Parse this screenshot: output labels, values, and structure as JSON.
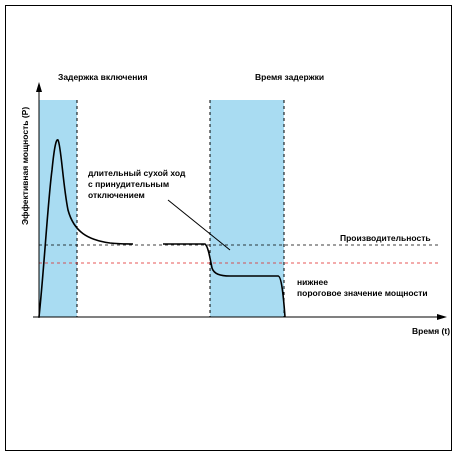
{
  "colors": {
    "band": "#a9dcf2",
    "curve": "#000000",
    "threshold_dashed": "#e02020",
    "productivity_dashed": "#000000"
  },
  "bands": [
    {
      "name": "startup_delay",
      "label": "Задержка включения"
    },
    {
      "name": "delay_time",
      "label": "Время задержки"
    }
  ],
  "axes": {
    "y_label": "Эффективная мощность (P)",
    "x_label": "Время (t)"
  },
  "annotations": {
    "dry_run_line1": "длительный сухой ход",
    "dry_run_line2": "с принудительным",
    "dry_run_line3": "отключением",
    "productivity": "Производительность",
    "lower_threshold_line1": "нижнее",
    "lower_threshold_line2": "пороговое значение мощности"
  }
}
